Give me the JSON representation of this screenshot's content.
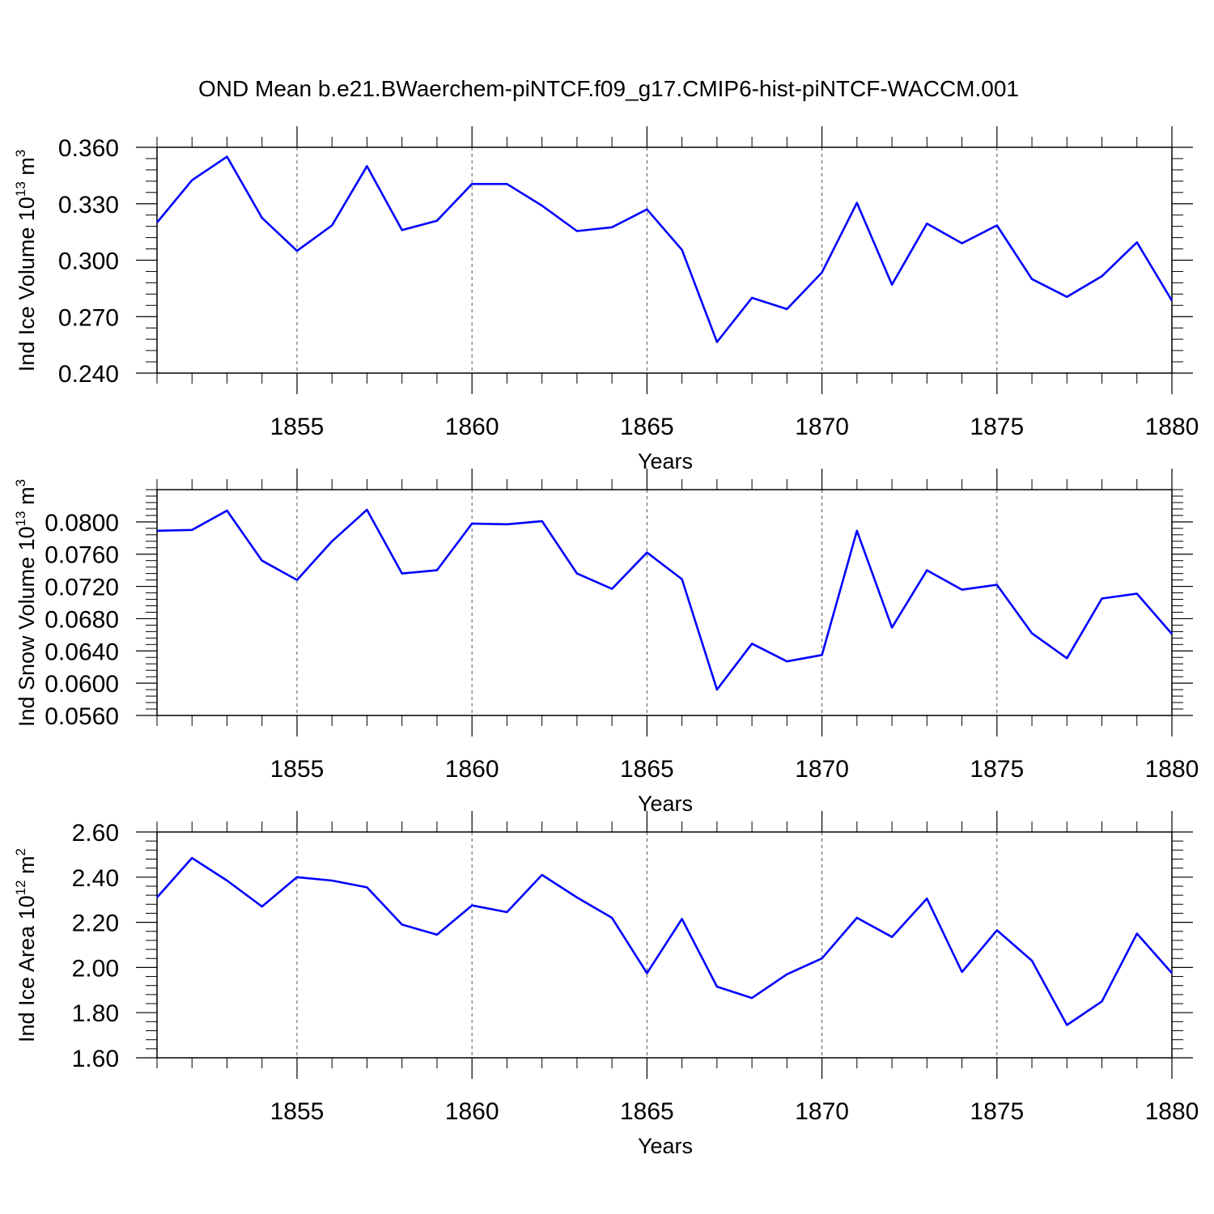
{
  "title": "OND Mean b.e21.BWaerchem-piNTCF.f09_g17.CMIP6-hist-piNTCF-WACCM.001",
  "colors": {
    "line": "#0000ff",
    "axis": "#000000",
    "grid": "#555555"
  },
  "chart_data": [
    {
      "type": "line",
      "ylabel": {
        "main": "Ind Ice Volume 10",
        "exp": "13",
        "unit": " m",
        "unit_exp": "3"
      },
      "xlabel": "Years",
      "xlim": [
        1851,
        1880
      ],
      "ylim": [
        0.24,
        0.36
      ],
      "yticks": [
        0.24,
        0.27,
        0.3,
        0.33,
        0.36
      ],
      "ytick_labels": [
        "0.240",
        "0.270",
        "0.300",
        "0.330",
        "0.360"
      ],
      "yminor": 0.006,
      "xticks": [
        1855,
        1860,
        1865,
        1870,
        1875,
        1880
      ],
      "xtick_labels": [
        "1855",
        "1860",
        "1865",
        "1870",
        "1875",
        "1880"
      ],
      "series": [
        {
          "name": "Ind Ice Volume",
          "x": [
            1851,
            1852,
            1853,
            1854,
            1855,
            1856,
            1857,
            1858,
            1859,
            1860,
            1861,
            1862,
            1863,
            1864,
            1865,
            1866,
            1867,
            1868,
            1869,
            1870,
            1871,
            1872,
            1873,
            1874,
            1875,
            1876,
            1877,
            1878,
            1879,
            1880
          ],
          "values": [
            0.32,
            0.3425,
            0.355,
            0.3225,
            0.305,
            0.3185,
            0.35,
            0.316,
            0.321,
            0.3405,
            0.3405,
            0.329,
            0.3155,
            0.3175,
            0.327,
            0.3055,
            0.2565,
            0.28,
            0.274,
            0.2935,
            0.3305,
            0.287,
            0.3195,
            0.309,
            0.3185,
            0.29,
            0.2805,
            0.2915,
            0.3095,
            0.2785
          ]
        }
      ]
    },
    {
      "type": "line",
      "ylabel": {
        "main": "Ind Snow Volume 10",
        "exp": "13",
        "unit": " m",
        "unit_exp": "3"
      },
      "xlabel": "Years",
      "xlim": [
        1851,
        1880
      ],
      "ylim": [
        0.056,
        0.084
      ],
      "yticks": [
        0.056,
        0.06,
        0.064,
        0.068,
        0.072,
        0.076,
        0.08
      ],
      "ytick_labels": [
        "0.0560",
        "0.0600",
        "0.0640",
        "0.0680",
        "0.0720",
        "0.0760",
        "0.0800"
      ],
      "yminor": 0.0008,
      "xticks": [
        1855,
        1860,
        1865,
        1870,
        1875,
        1880
      ],
      "xtick_labels": [
        "1855",
        "1860",
        "1865",
        "1870",
        "1875",
        "1880"
      ],
      "series": [
        {
          "name": "Ind Snow Volume",
          "x": [
            1851,
            1852,
            1853,
            1854,
            1855,
            1856,
            1857,
            1858,
            1859,
            1860,
            1861,
            1862,
            1863,
            1864,
            1865,
            1866,
            1867,
            1868,
            1869,
            1870,
            1871,
            1872,
            1873,
            1874,
            1875,
            1876,
            1877,
            1878,
            1879,
            1880
          ],
          "values": [
            0.0789,
            0.079,
            0.0814,
            0.0752,
            0.0728,
            0.0776,
            0.0815,
            0.0736,
            0.074,
            0.0798,
            0.0797,
            0.0801,
            0.0736,
            0.0717,
            0.0762,
            0.0729,
            0.0592,
            0.0649,
            0.0627,
            0.0635,
            0.0789,
            0.0669,
            0.074,
            0.0716,
            0.0722,
            0.0662,
            0.0631,
            0.0705,
            0.0711,
            0.0661
          ]
        }
      ]
    },
    {
      "type": "line",
      "ylabel": {
        "main": "Ind Ice Area 10",
        "exp": "12",
        "unit": " m",
        "unit_exp": "2"
      },
      "xlabel": "Years",
      "xlim": [
        1851,
        1880
      ],
      "ylim": [
        1.6,
        2.6
      ],
      "yticks": [
        1.6,
        1.8,
        2.0,
        2.2,
        2.4,
        2.6
      ],
      "ytick_labels": [
        "1.60",
        "1.80",
        "2.00",
        "2.20",
        "2.40",
        "2.60"
      ],
      "yminor": 0.04,
      "xticks": [
        1855,
        1860,
        1865,
        1870,
        1875,
        1880
      ],
      "xtick_labels": [
        "1855",
        "1860",
        "1865",
        "1870",
        "1875",
        "1880"
      ],
      "series": [
        {
          "name": "Ind Ice Area",
          "x": [
            1851,
            1852,
            1853,
            1854,
            1855,
            1856,
            1857,
            1858,
            1859,
            1860,
            1861,
            1862,
            1863,
            1864,
            1865,
            1866,
            1867,
            1868,
            1869,
            1870,
            1871,
            1872,
            1873,
            1874,
            1875,
            1876,
            1877,
            1878,
            1879,
            1880
          ],
          "values": [
            2.31,
            2.485,
            2.385,
            2.27,
            2.4,
            2.385,
            2.355,
            2.19,
            2.145,
            2.275,
            2.245,
            2.41,
            2.31,
            2.22,
            1.975,
            2.215,
            1.915,
            1.865,
            1.97,
            2.04,
            2.22,
            2.135,
            2.305,
            1.98,
            2.165,
            2.03,
            1.745,
            1.85,
            2.15,
            1.975
          ]
        }
      ]
    }
  ]
}
